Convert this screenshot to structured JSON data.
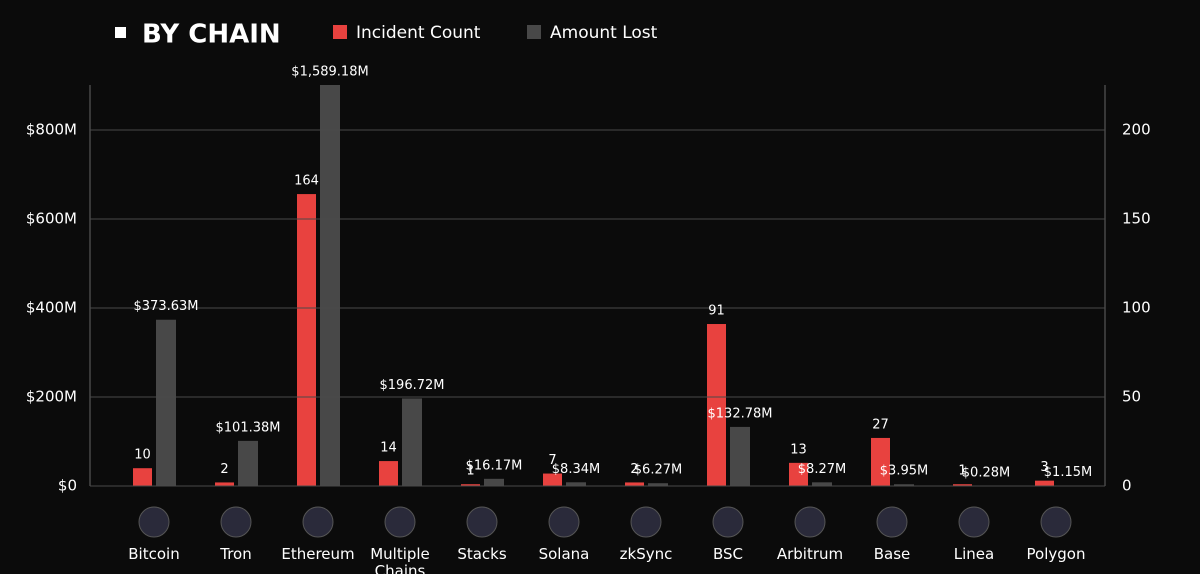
{
  "chart_data": {
    "type": "bar",
    "title": "BY CHAIN",
    "categories": [
      "Bitcoin",
      "Tron",
      "Ethereum",
      "Multiple Chains",
      "Stacks",
      "Solana",
      "zkSync",
      "BSC",
      "Arbitrum",
      "Base",
      "Linea",
      "Polygon"
    ],
    "series": [
      {
        "name": "Incident Count",
        "color": "#e8423f",
        "axis": "y2",
        "values": [
          10,
          2,
          164,
          14,
          1,
          7,
          2,
          91,
          13,
          27,
          1,
          3
        ]
      },
      {
        "name": "Amount Lost",
        "color": "#484848",
        "values": [
          373.63,
          101.38,
          1589.18,
          196.72,
          16.17,
          8.34,
          6.27,
          132.78,
          8.27,
          3.95,
          0.28,
          1.15
        ],
        "value_labels": [
          "$373.63M",
          "$101.38M",
          "$1,589.18M",
          "$196.72M",
          "$16.17M",
          "$8.34M",
          "$6.27M",
          "$132.78M",
          "$8.27M",
          "$3.95M",
          "$0.28M",
          "$1.15M"
        ]
      }
    ],
    "ylim": [
      0,
      900
    ],
    "yticks": [
      {
        "value": 0,
        "label": "$0"
      },
      {
        "value": 200,
        "label": "$200M"
      },
      {
        "value": 400,
        "label": "$400M"
      },
      {
        "value": 600,
        "label": "$600M"
      },
      {
        "value": 800,
        "label": "$800M"
      }
    ],
    "y2lim": [
      0,
      225
    ],
    "y2ticks": [
      0,
      50,
      100,
      150,
      200
    ],
    "grid": true
  }
}
